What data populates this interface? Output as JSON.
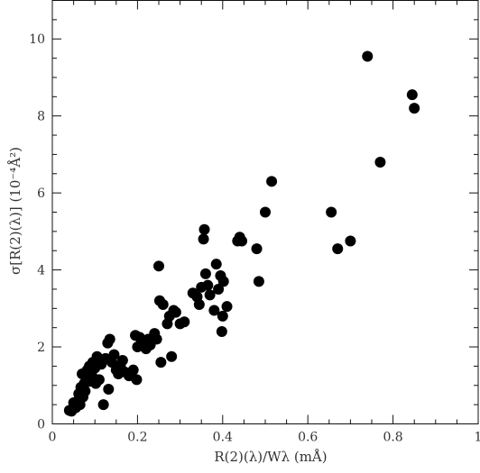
{
  "chart_data": {
    "type": "scatter",
    "title": "",
    "xlabel": "R(2)(λ)/Wλ (mÅ)",
    "ylabel": "σ[R(2)(λ)] (10⁻⁴Å²)",
    "xlim": [
      0,
      1
    ],
    "ylim": [
      0,
      11
    ],
    "x_major_ticks": [
      0,
      0.2,
      0.4,
      0.6,
      0.8,
      1
    ],
    "x_tick_labels": [
      "0",
      "0.2",
      "0.4",
      "0.6",
      "0.8",
      "1"
    ],
    "y_major_ticks": [
      0,
      2,
      4,
      6,
      8,
      10
    ],
    "y_tick_labels": [
      "0",
      "2",
      "4",
      "6",
      "8",
      "10"
    ],
    "grid": false,
    "legend": "none",
    "marker_color": "#000000",
    "points": [
      {
        "x": 0.04,
        "y": 0.35
      },
      {
        "x": 0.045,
        "y": 0.33
      },
      {
        "x": 0.05,
        "y": 0.55
      },
      {
        "x": 0.055,
        "y": 0.42
      },
      {
        "x": 0.06,
        "y": 0.6
      },
      {
        "x": 0.062,
        "y": 0.78
      },
      {
        "x": 0.065,
        "y": 0.5
      },
      {
        "x": 0.067,
        "y": 0.95
      },
      {
        "x": 0.07,
        "y": 1.3
      },
      {
        "x": 0.072,
        "y": 0.7
      },
      {
        "x": 0.075,
        "y": 1.05
      },
      {
        "x": 0.077,
        "y": 0.85
      },
      {
        "x": 0.08,
        "y": 1.2
      },
      {
        "x": 0.082,
        "y": 1.4
      },
      {
        "x": 0.085,
        "y": 1.1
      },
      {
        "x": 0.087,
        "y": 1.5
      },
      {
        "x": 0.09,
        "y": 1.35
      },
      {
        "x": 0.093,
        "y": 1.25
      },
      {
        "x": 0.095,
        "y": 1.6
      },
      {
        "x": 0.1,
        "y": 1.45
      },
      {
        "x": 0.102,
        "y": 1.05
      },
      {
        "x": 0.105,
        "y": 1.75
      },
      {
        "x": 0.11,
        "y": 1.15
      },
      {
        "x": 0.115,
        "y": 1.55
      },
      {
        "x": 0.12,
        "y": 0.5
      },
      {
        "x": 0.125,
        "y": 1.7
      },
      {
        "x": 0.13,
        "y": 2.1
      },
      {
        "x": 0.132,
        "y": 0.9
      },
      {
        "x": 0.135,
        "y": 2.2
      },
      {
        "x": 0.14,
        "y": 1.6
      },
      {
        "x": 0.145,
        "y": 1.8
      },
      {
        "x": 0.15,
        "y": 1.4
      },
      {
        "x": 0.155,
        "y": 1.3
      },
      {
        "x": 0.16,
        "y": 1.5
      },
      {
        "x": 0.165,
        "y": 1.65
      },
      {
        "x": 0.17,
        "y": 1.35
      },
      {
        "x": 0.18,
        "y": 1.25
      },
      {
        "x": 0.19,
        "y": 1.4
      },
      {
        "x": 0.195,
        "y": 2.3
      },
      {
        "x": 0.198,
        "y": 1.15
      },
      {
        "x": 0.2,
        "y": 2.0
      },
      {
        "x": 0.205,
        "y": 2.25
      },
      {
        "x": 0.21,
        "y": 2.1
      },
      {
        "x": 0.215,
        "y": 2.15
      },
      {
        "x": 0.22,
        "y": 1.95
      },
      {
        "x": 0.225,
        "y": 2.2
      },
      {
        "x": 0.23,
        "y": 2.05
      },
      {
        "x": 0.24,
        "y": 2.35
      },
      {
        "x": 0.245,
        "y": 2.2
      },
      {
        "x": 0.25,
        "y": 4.1
      },
      {
        "x": 0.252,
        "y": 3.2
      },
      {
        "x": 0.255,
        "y": 1.6
      },
      {
        "x": 0.26,
        "y": 3.1
      },
      {
        "x": 0.27,
        "y": 2.6
      },
      {
        "x": 0.275,
        "y": 2.8
      },
      {
        "x": 0.28,
        "y": 1.75
      },
      {
        "x": 0.285,
        "y": 2.95
      },
      {
        "x": 0.29,
        "y": 2.9
      },
      {
        "x": 0.3,
        "y": 2.6
      },
      {
        "x": 0.31,
        "y": 2.65
      },
      {
        "x": 0.33,
        "y": 3.4
      },
      {
        "x": 0.34,
        "y": 3.3
      },
      {
        "x": 0.345,
        "y": 3.1
      },
      {
        "x": 0.35,
        "y": 3.55
      },
      {
        "x": 0.355,
        "y": 4.8
      },
      {
        "x": 0.357,
        "y": 5.05
      },
      {
        "x": 0.36,
        "y": 3.9
      },
      {
        "x": 0.365,
        "y": 3.6
      },
      {
        "x": 0.37,
        "y": 3.35
      },
      {
        "x": 0.38,
        "y": 2.95
      },
      {
        "x": 0.385,
        "y": 4.15
      },
      {
        "x": 0.39,
        "y": 3.5
      },
      {
        "x": 0.395,
        "y": 3.85
      },
      {
        "x": 0.398,
        "y": 2.4
      },
      {
        "x": 0.4,
        "y": 2.8
      },
      {
        "x": 0.402,
        "y": 3.7
      },
      {
        "x": 0.41,
        "y": 3.05
      },
      {
        "x": 0.435,
        "y": 4.75
      },
      {
        "x": 0.44,
        "y": 4.85
      },
      {
        "x": 0.445,
        "y": 4.75
      },
      {
        "x": 0.48,
        "y": 4.55
      },
      {
        "x": 0.485,
        "y": 3.7
      },
      {
        "x": 0.5,
        "y": 5.5
      },
      {
        "x": 0.515,
        "y": 6.3
      },
      {
        "x": 0.655,
        "y": 5.5
      },
      {
        "x": 0.67,
        "y": 4.55
      },
      {
        "x": 0.7,
        "y": 4.75
      },
      {
        "x": 0.74,
        "y": 9.55
      },
      {
        "x": 0.77,
        "y": 6.8
      },
      {
        "x": 0.845,
        "y": 8.55
      },
      {
        "x": 0.85,
        "y": 8.2
      }
    ]
  }
}
